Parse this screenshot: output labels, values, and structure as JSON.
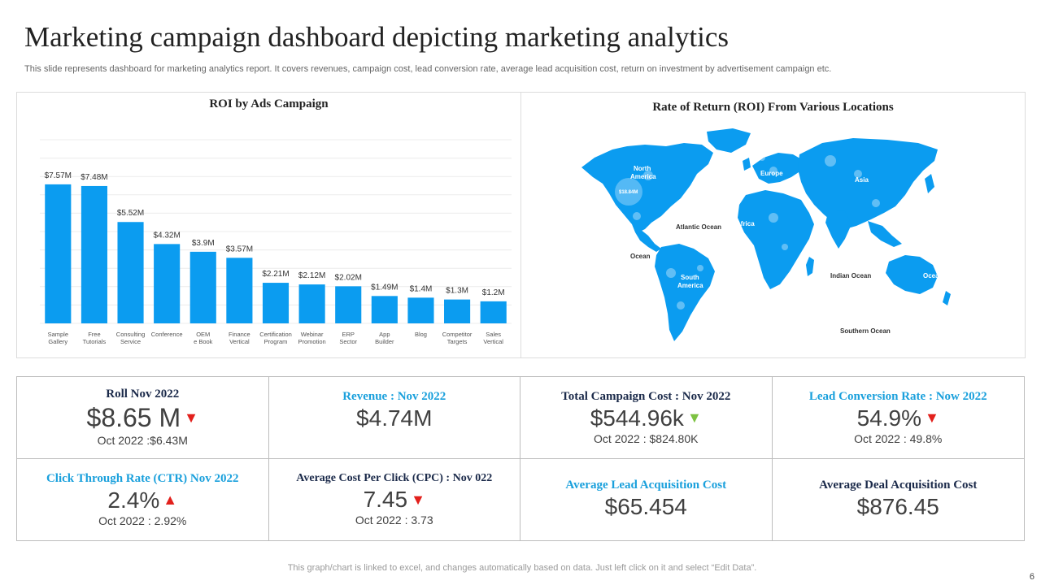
{
  "title": "Marketing campaign dashboard depicting marketing analytics",
  "subtitle": "This slide represents dashboard for marketing analytics report. It covers revenues, campaign cost, lead conversion rate, average lead acquisition cost, return on investment by advertisement campaign etc.",
  "chart_data": {
    "type": "bar",
    "title": "ROI by Ads Campaign",
    "categories": [
      [
        "Sample",
        "Gallery"
      ],
      [
        "Free",
        "Tutorials"
      ],
      [
        "Consulting",
        "Service"
      ],
      [
        "Conference"
      ],
      [
        "OEM",
        "e Book"
      ],
      [
        "Finance",
        "Vertical"
      ],
      [
        "Certification",
        "Program"
      ],
      [
        "Webinar",
        "Promotion"
      ],
      [
        "ERP",
        "Sector"
      ],
      [
        "App",
        "Builder"
      ],
      [
        "Blog"
      ],
      [
        "Competitor",
        "Targets"
      ],
      [
        "Sales",
        "Vertical"
      ]
    ],
    "values": [
      7.57,
      7.48,
      5.52,
      4.32,
      3.9,
      3.57,
      2.21,
      2.12,
      2.02,
      1.49,
      1.4,
      1.3,
      1.2
    ],
    "data_labels": [
      "$7.57M",
      "$7.48M",
      "$5.52M",
      "$4.32M",
      "$3.9M",
      "$3.57M",
      "$2.21M",
      "$2.12M",
      "$2.02M",
      "$1.49M",
      "$1.4M",
      "$1.3M",
      "$1.2M"
    ],
    "ylim": [
      0,
      10
    ],
    "grid": true,
    "color": "#0b9cf0"
  },
  "map": {
    "title": "Rate of Return (ROI) From Various Locations",
    "color": "#0b9cf0",
    "labels": {
      "north_america": [
        "North",
        "America"
      ],
      "europe": "Europe",
      "asia": "Asia",
      "africa": "Africa",
      "south_america": [
        "South",
        "America"
      ],
      "atlantic": "Atlantic Ocean",
      "ocean": "Ocean",
      "indian": "Indian Ocean",
      "southern": "Southern Ocean",
      "oceania": "Ocea",
      "highlight_value": "$18.84M"
    }
  },
  "kpis": [
    {
      "label": "Roll Nov 2022",
      "value": "$8.65 M",
      "sub": "Oct 2022 :$6.43M",
      "trend": "down"
    },
    {
      "label": "Revenue : Nov 2022",
      "value": "$4.74M",
      "sub": "",
      "trend": ""
    },
    {
      "label": "Total Campaign  Cost : Nov 2022",
      "value": "$544.96k",
      "sub": "Oct 2022 : $824.80K",
      "trend": "down-good"
    },
    {
      "label": "Lead Conversion Rate : Now 2022",
      "value": "54.9%",
      "sub": "Oct 2022 : 49.8%",
      "trend": "down"
    },
    {
      "label": "Click Through  Rate (CTR) Nov 2022",
      "value": "2.4%",
      "sub": "Oct 2022 : 2.92%",
      "trend": "up"
    },
    {
      "label": "Average Cost Per Click (CPC) : Nov 022",
      "value": "7.45",
      "sub": "Oct 2022 : 3.73",
      "trend": "down"
    },
    {
      "label": "Average Lead Acquisition  Cost",
      "value": "$65.454",
      "sub": "",
      "trend": ""
    },
    {
      "label": "Average Deal Acquisition  Cost",
      "value": "$876.45",
      "sub": "",
      "trend": ""
    }
  ],
  "arrows": {
    "down": "▼",
    "up": "▲"
  },
  "footnote": "This graph/chart is linked to excel,  and changes automatically based on data. Just left click on it and select “Edit Data”.",
  "page_number": "6"
}
